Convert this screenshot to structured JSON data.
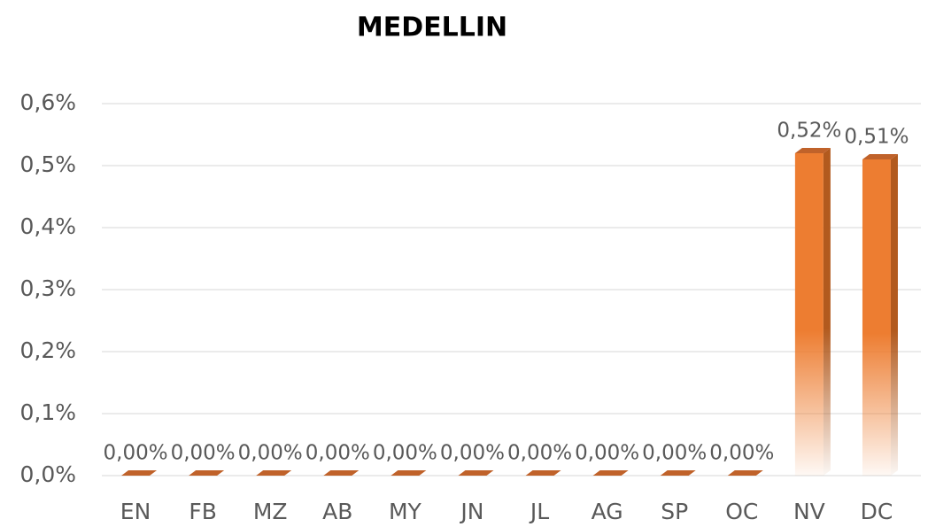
{
  "chart_data": {
    "type": "bar",
    "title": "MEDELLIN",
    "categories": [
      "EN",
      "FB",
      "MZ",
      "AB",
      "MY",
      "JN",
      "JL",
      "AG",
      "SP",
      "OC",
      "NV",
      "DC"
    ],
    "values": [
      0,
      0,
      0,
      0,
      0,
      0,
      0,
      0,
      0,
      0,
      0.52,
      0.51
    ],
    "value_labels": [
      "0,00%",
      "0,00%",
      "0,00%",
      "0,00%",
      "0,00%",
      "0,00%",
      "0,00%",
      "0,00%",
      "0,00%",
      "0,00%",
      "0,52%",
      "0,51%"
    ],
    "color": "#ed7d31",
    "ylim": [
      0,
      0.6
    ],
    "yticks": [
      {
        "value": 0,
        "label": "0,0%"
      },
      {
        "value": 0.1,
        "label": "0,1%"
      },
      {
        "value": 0.2,
        "label": "0,2%"
      },
      {
        "value": 0.3,
        "label": "0,3%"
      },
      {
        "value": 0.4,
        "label": "0,4%"
      },
      {
        "value": 0.5,
        "label": "0,5%"
      },
      {
        "value": 0.6,
        "label": "0,6%"
      }
    ],
    "grid": true
  }
}
